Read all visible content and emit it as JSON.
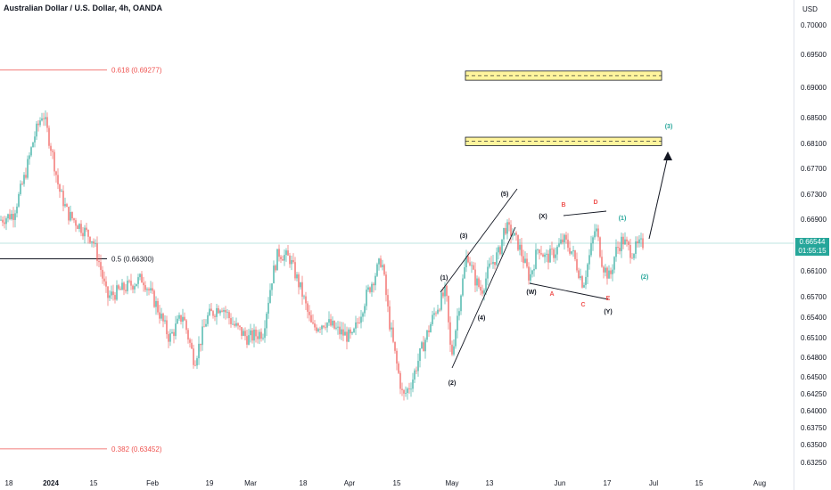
{
  "title": "Australian Dollar / U.S. Dollar, 4h, OANDA",
  "currency": "USD",
  "last_price": {
    "value": "0.66544",
    "countdown": "01:55:15"
  },
  "colors": {
    "up": "#26a69a",
    "down": "#ef5350",
    "fib_red": "#ef5350",
    "fib_mid": "#131722",
    "zone": "#fff59d",
    "wave_black": "#131722",
    "wave_red": "#ef5350",
    "wave_teal": "#26a69a"
  },
  "chart_data": {
    "type": "candlestick",
    "y_ticks": [
      "0.70000",
      "0.69500",
      "0.69000",
      "0.68500",
      "0.68100",
      "0.67700",
      "0.67300",
      "0.66900",
      "0.66500",
      "0.66100",
      "0.65700",
      "0.65400",
      "0.65100",
      "0.64800",
      "0.64500",
      "0.64250",
      "0.64000",
      "0.63750",
      "0.63500",
      "0.63250"
    ],
    "x_ticks": [
      {
        "label": "18",
        "bold": false
      },
      {
        "label": "2024",
        "bold": true
      },
      {
        "label": "15",
        "bold": false
      },
      {
        "label": "Feb",
        "bold": false
      },
      {
        "label": "19",
        "bold": false
      },
      {
        "label": "Mar",
        "bold": false
      },
      {
        "label": "18",
        "bold": false
      },
      {
        "label": "Apr",
        "bold": false
      },
      {
        "label": "15",
        "bold": false
      },
      {
        "label": "May",
        "bold": false
      },
      {
        "label": "13",
        "bold": false
      },
      {
        "label": "Jun",
        "bold": false
      },
      {
        "label": "17",
        "bold": false
      },
      {
        "label": "Jul",
        "bold": false
      },
      {
        "label": "15",
        "bold": false
      },
      {
        "label": "Aug",
        "bold": false
      }
    ],
    "fib_levels": [
      {
        "label": "0.618 (0.69277)",
        "price": 0.69277,
        "kind": "red"
      },
      {
        "label": "0.5 (0.66300)",
        "price": 0.663,
        "kind": "mid"
      },
      {
        "label": "0.382 (0.63452)",
        "price": 0.63452,
        "kind": "red"
      }
    ],
    "zones": [
      {
        "top": 0.6926,
        "bottom": 0.6912
      },
      {
        "top": 0.6821,
        "bottom": 0.6808
      }
    ],
    "waves": [
      {
        "label": "(1)",
        "color": "black"
      },
      {
        "label": "(2)",
        "color": "black"
      },
      {
        "label": "(3)",
        "color": "black"
      },
      {
        "label": "(4)",
        "color": "black"
      },
      {
        "label": "(5)",
        "color": "black"
      },
      {
        "label": "(W)",
        "color": "black"
      },
      {
        "label": "(X)",
        "color": "black"
      },
      {
        "label": "(Y)",
        "color": "black"
      },
      {
        "label": "A",
        "color": "red"
      },
      {
        "label": "B",
        "color": "red"
      },
      {
        "label": "C",
        "color": "red"
      },
      {
        "label": "D",
        "color": "red"
      },
      {
        "label": "E",
        "color": "red"
      },
      {
        "label": "(1)",
        "color": "teal"
      },
      {
        "label": "(2)",
        "color": "teal"
      },
      {
        "label": "(3)",
        "color": "teal"
      }
    ],
    "price_path": [
      [
        0,
        0.669
      ],
      [
        15,
        0.67
      ],
      [
        28,
        0.676
      ],
      [
        38,
        0.682
      ],
      [
        48,
        0.686
      ],
      [
        58,
        0.68
      ],
      [
        66,
        0.674
      ],
      [
        76,
        0.67
      ],
      [
        90,
        0.668
      ],
      [
        104,
        0.666
      ],
      [
        112,
        0.662
      ],
      [
        120,
        0.657
      ],
      [
        140,
        0.6585
      ],
      [
        160,
        0.66
      ],
      [
        175,
        0.656
      ],
      [
        190,
        0.651
      ],
      [
        205,
        0.6545
      ],
      [
        218,
        0.6475
      ],
      [
        232,
        0.654
      ],
      [
        248,
        0.656
      ],
      [
        262,
        0.653
      ],
      [
        278,
        0.651
      ],
      [
        295,
        0.652
      ],
      [
        305,
        0.66
      ],
      [
        312,
        0.664
      ],
      [
        325,
        0.663
      ],
      [
        338,
        0.658
      ],
      [
        350,
        0.6525
      ],
      [
        365,
        0.6535
      ],
      [
        380,
        0.652
      ],
      [
        395,
        0.651
      ],
      [
        410,
        0.657
      ],
      [
        428,
        0.663
      ],
      [
        436,
        0.654
      ],
      [
        445,
        0.647
      ],
      [
        452,
        0.642
      ],
      [
        462,
        0.6445
      ],
      [
        472,
        0.649
      ],
      [
        488,
        0.655
      ],
      [
        500,
        0.658
      ],
      [
        506,
        0.648
      ],
      [
        516,
        0.657
      ],
      [
        524,
        0.664
      ],
      [
        532,
        0.66
      ],
      [
        540,
        0.658
      ],
      [
        550,
        0.662
      ],
      [
        560,
        0.664
      ],
      [
        566,
        0.668
      ],
      [
        574,
        0.667
      ],
      [
        582,
        0.665
      ],
      [
        594,
        0.66
      ],
      [
        604,
        0.665
      ],
      [
        612,
        0.663
      ],
      [
        622,
        0.664
      ],
      [
        632,
        0.666
      ],
      [
        642,
        0.664
      ],
      [
        654,
        0.659
      ],
      [
        662,
        0.664
      ],
      [
        668,
        0.668
      ],
      [
        676,
        0.662
      ],
      [
        684,
        0.66
      ],
      [
        690,
        0.664
      ],
      [
        698,
        0.666
      ],
      [
        708,
        0.664
      ],
      [
        716,
        0.665
      ],
      [
        722,
        0.66544
      ]
    ]
  }
}
